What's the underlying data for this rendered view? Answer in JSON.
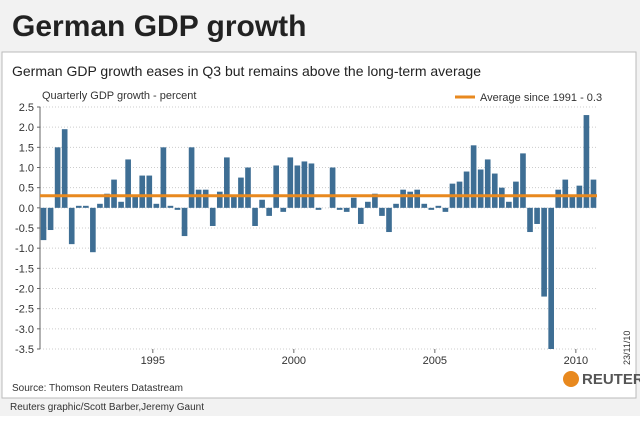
{
  "chart_data": {
    "type": "bar",
    "title": "German GDP growth",
    "subtitle": "German GDP growth eases in Q3 but remains above the long-term average",
    "y_label": "Quarterly GDP growth - percent",
    "source": "Source: Thomson Reuters Datastream",
    "brand": "REUTERS",
    "credit": "Reuters graphic/Scott Barber,Jeremy Gaunt",
    "date": "23/11/10",
    "color": "#3e6e94",
    "grid": true,
    "x": [
      1991,
      1991.25,
      1991.5,
      1991.75,
      1992,
      1992.25,
      1992.5,
      1992.75,
      1993,
      1993.25,
      1993.5,
      1993.75,
      1994,
      1994.25,
      1994.5,
      1994.75,
      1995,
      1995.25,
      1995.5,
      1995.75,
      1996,
      1996.25,
      1996.5,
      1996.75,
      1997,
      1997.25,
      1997.5,
      1997.75,
      1998,
      1998.25,
      1998.5,
      1998.75,
      1999,
      1999.25,
      1999.5,
      1999.75,
      2000,
      2000.25,
      2000.5,
      2000.75,
      2001,
      2001.25,
      2001.5,
      2001.75,
      2002,
      2002.25,
      2002.5,
      2002.75,
      2003,
      2003.25,
      2003.5,
      2003.75,
      2004,
      2004.25,
      2004.5,
      2004.75,
      2005,
      2005.25,
      2005.5,
      2005.75,
      2006,
      2006.25,
      2006.5,
      2006.75,
      2007,
      2007.25,
      2007.5,
      2007.75,
      2008,
      2008.25,
      2008.5,
      2008.75,
      2009,
      2009.25,
      2009.5,
      2009.75,
      2010,
      2010.25,
      2010.5
    ],
    "values": [
      -0.8,
      -0.55,
      1.5,
      1.95,
      -0.9,
      0.05,
      0.05,
      -1.1,
      0.1,
      0.35,
      0.7,
      0.15,
      1.2,
      0.3,
      0.8,
      0.8,
      0.1,
      1.5,
      0.05,
      -0.05,
      -0.7,
      1.5,
      0.45,
      0.45,
      -0.45,
      0.4,
      1.25,
      0.3,
      0.75,
      1.0,
      -0.45,
      0.2,
      -0.2,
      1.05,
      -0.1,
      1.25,
      1.05,
      1.15,
      1.1,
      -0.05,
      0.0,
      1.0,
      -0.05,
      -0.1,
      0.25,
      -0.4,
      0.15,
      0.35,
      -0.2,
      -0.6,
      0.1,
      0.45,
      0.4,
      0.45,
      0.1,
      -0.05,
      0.05,
      -0.1,
      0.6,
      0.65,
      0.9,
      1.55,
      0.95,
      1.2,
      0.85,
      0.5,
      0.15,
      0.65,
      1.35,
      -0.6,
      -0.4,
      -2.2,
      -3.5,
      0.45,
      0.7,
      0.3,
      0.55,
      2.3,
      0.7
    ],
    "average": {
      "name": "Average since 1991 - 0.3",
      "value": 0.3,
      "color": "#e8891f"
    },
    "xlim": [
      1991,
      2010.75
    ],
    "xticks": [
      1995,
      2000,
      2005,
      2010
    ],
    "ylim": [
      -3.5,
      2.5
    ],
    "yticks": [
      {
        "value": 2.5,
        "label": "2.5"
      },
      {
        "value": 2,
        "label": "2.0"
      },
      1.5,
      {
        "value": 1,
        "label": "1.0"
      },
      0.5,
      {
        "value": 0,
        "label": "0.0"
      },
      -0.5,
      {
        "value": -1,
        "label": "-1.0"
      },
      -1.5,
      {
        "value": -2,
        "label": "-2.0"
      },
      -2.5,
      {
        "value": -3,
        "label": "-3.0"
      },
      -3.5
    ]
  }
}
